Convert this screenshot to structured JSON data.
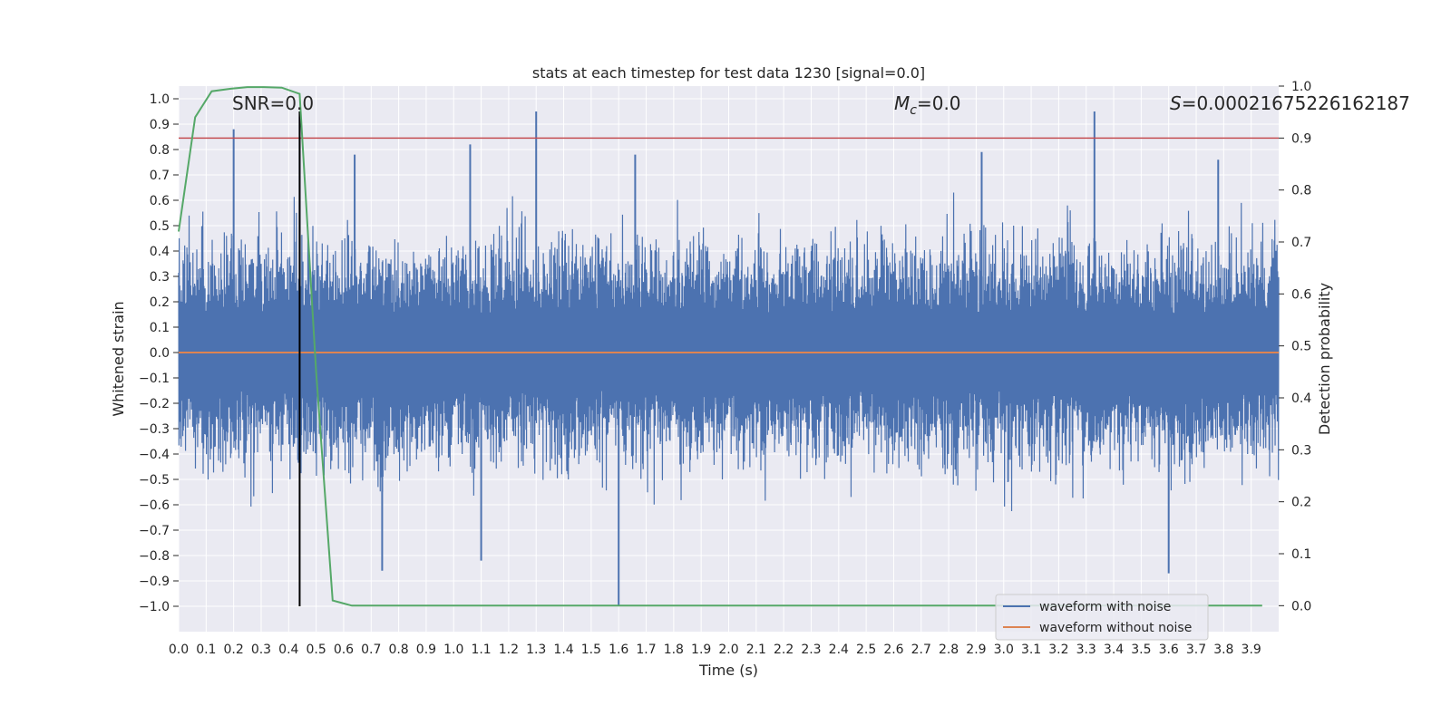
{
  "chart_data": {
    "type": "line",
    "title": "stats at each timestep for test data 1230 [signal=0.0]",
    "xlabel": "Time (s)",
    "ylabel": "Whitened strain",
    "y2label": "Detection probability",
    "xlim": [
      0.0,
      4.0
    ],
    "ylim": [
      -1.1,
      1.05
    ],
    "y2lim": [
      -0.05,
      1.0
    ],
    "xticks": [
      "0.0",
      "0.1",
      "0.2",
      "0.3",
      "0.4",
      "0.5",
      "0.6",
      "0.7",
      "0.8",
      "0.9",
      "1.0",
      "1.1",
      "1.2",
      "1.3",
      "1.4",
      "1.5",
      "1.6",
      "1.7",
      "1.8",
      "1.9",
      "2.0",
      "2.1",
      "2.2",
      "2.3",
      "2.4",
      "2.5",
      "2.6",
      "2.7",
      "2.8",
      "2.9",
      "3.0",
      "3.1",
      "3.2",
      "3.3",
      "3.4",
      "3.5",
      "3.6",
      "3.7",
      "3.8",
      "3.9"
    ],
    "yticks": [
      "1.0",
      "0.9",
      "0.8",
      "0.7",
      "0.6",
      "0.5",
      "0.4",
      "0.3",
      "0.2",
      "0.1",
      "0.0",
      "−0.1",
      "−0.2",
      "−0.3",
      "−0.4",
      "−0.5",
      "−0.6",
      "−0.7",
      "−0.8",
      "−0.9",
      "−1.0"
    ],
    "y2ticks": [
      "0.0",
      "0.1",
      "0.2",
      "0.3",
      "0.4",
      "0.5",
      "0.6",
      "0.7",
      "0.8",
      "0.9",
      "1.0"
    ],
    "grid": true,
    "legend_position": "bottom-right",
    "annotations": {
      "snr": "SNR=0.0",
      "mc_symbol": "M",
      "mc_sub": "c",
      "mc_value": "=0.0",
      "s_symbol": "S",
      "s_value": "=0.00021675226162187"
    },
    "series": [
      {
        "name": "waveform with noise",
        "color": "#4c72b0",
        "kind": "noise",
        "spikes": [
          {
            "x": 0.2,
            "y": 0.88
          },
          {
            "x": 0.44,
            "y": 0.93
          },
          {
            "x": 0.64,
            "y": 0.78
          },
          {
            "x": 1.06,
            "y": 0.82
          },
          {
            "x": 1.3,
            "y": 0.95
          },
          {
            "x": 1.66,
            "y": 0.78
          },
          {
            "x": 2.92,
            "y": 0.79
          },
          {
            "x": 3.33,
            "y": 0.95
          },
          {
            "x": 3.78,
            "y": 0.76
          },
          {
            "x": 0.74,
            "y": -0.86
          },
          {
            "x": 1.1,
            "y": -0.82
          },
          {
            "x": 1.6,
            "y": -1.0
          },
          {
            "x": 3.6,
            "y": -0.87
          }
        ]
      },
      {
        "name": "waveform without noise",
        "color": "#dd8452",
        "x": [
          0.0,
          4.0
        ],
        "y": [
          0.0,
          0.0
        ]
      },
      {
        "name": "detection probability",
        "color": "#55a868",
        "axis": "right",
        "x": [
          0.0,
          0.06,
          0.12,
          0.19,
          0.25,
          0.31,
          0.375,
          0.44,
          0.5,
          0.56,
          0.63,
          0.7,
          1.0,
          2.0,
          3.0,
          3.94
        ],
        "y": [
          0.72,
          0.94,
          0.99,
          0.995,
          0.998,
          0.998,
          0.997,
          0.985,
          0.45,
          0.01,
          0.0,
          0.0,
          0.0,
          0.0,
          0.0,
          0.0
        ]
      }
    ],
    "threshold": {
      "y2": 0.9,
      "color": "#c44e52"
    },
    "marker_line": {
      "x": 0.44,
      "y_from": -1.0,
      "y_to": 0.95,
      "color": "#000000"
    }
  }
}
